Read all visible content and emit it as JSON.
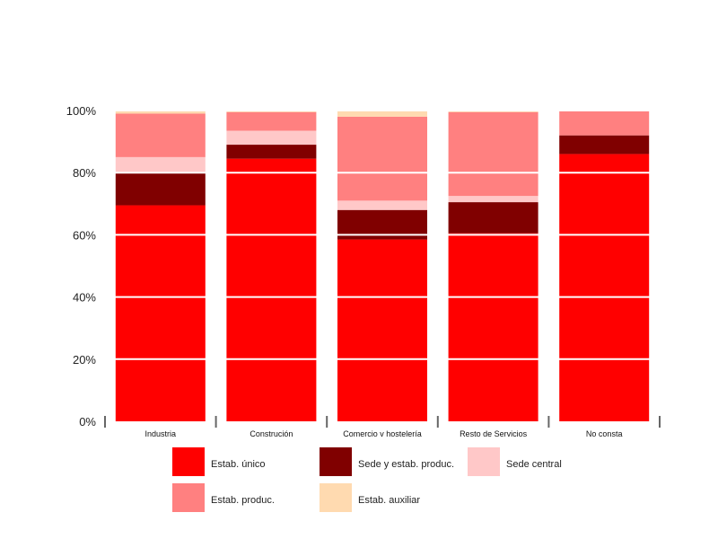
{
  "chart_data": {
    "type": "bar",
    "stacked": true,
    "percent": true,
    "categories": [
      "Industria",
      "Construción",
      "Comercio v hostelería",
      "Resto de Servicios",
      "No consta"
    ],
    "series": [
      {
        "name": "Estab. único",
        "color": "#ff0000",
        "values": [
          69.5,
          84.5,
          58.5,
          60.5,
          86
        ]
      },
      {
        "name": "Sede y estab. produc.",
        "color": "#800000",
        "values": [
          10.5,
          4.5,
          9.5,
          10,
          6
        ]
      },
      {
        "name": "Sede central",
        "color": "#ffc8c8",
        "values": [
          5,
          4.5,
          3,
          2,
          0
        ]
      },
      {
        "name": "Estab. produc.",
        "color": "#ff8080",
        "values": [
          14,
          6,
          27,
          27,
          8
        ]
      },
      {
        "name": "Estab. auxiliar",
        "color": "#ffdab0",
        "values": [
          1,
          0.5,
          2,
          0.5,
          0
        ]
      }
    ],
    "y_ticks": [
      "0%",
      "20%",
      "40%",
      "60%",
      "80%",
      "100%"
    ],
    "ylim": [
      0,
      100
    ],
    "grid": true,
    "legend_position": "bottom"
  }
}
